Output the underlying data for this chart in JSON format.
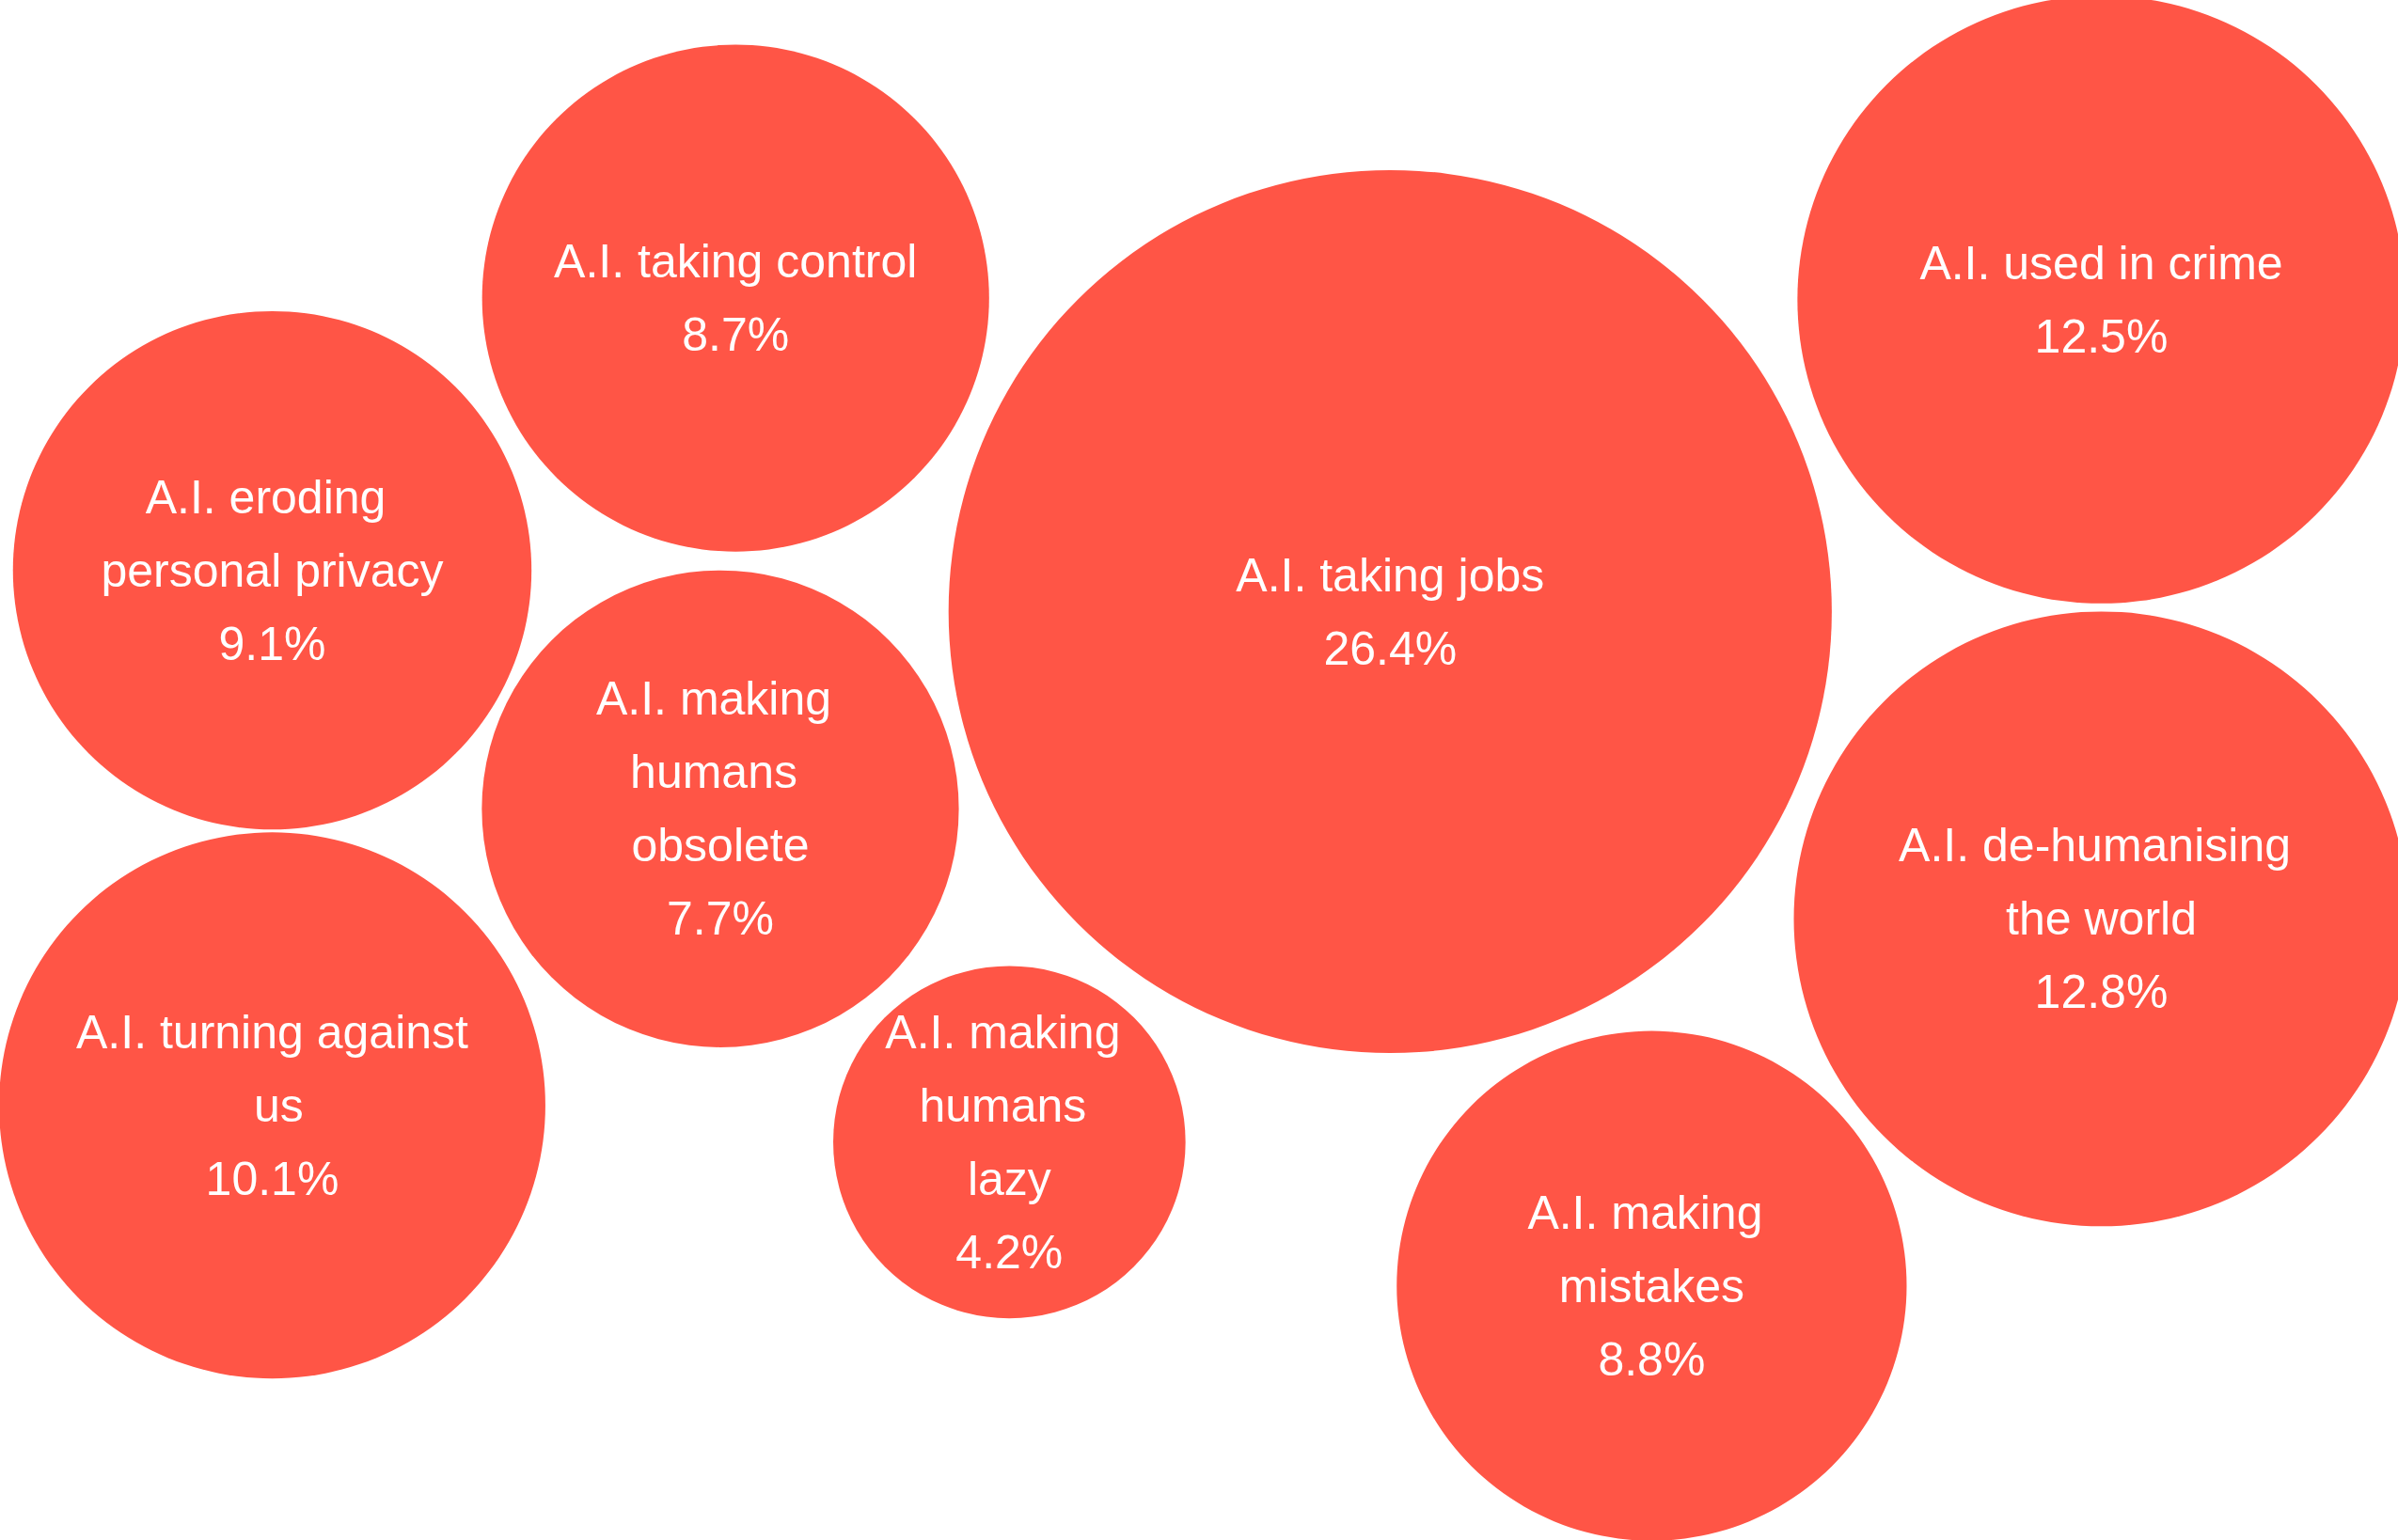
{
  "chart_data": {
    "type": "other",
    "categories": [
      "A.I. taking jobs",
      "A.I. used in crime",
      "A.I. de-humanising the world",
      "A.I. making mistakes",
      "A.I. making humans lazy",
      "A.I. turning against us",
      "A.I. making humans obsolete",
      "A.I. eroding personal privacy",
      "A.I. taking control"
    ],
    "values": [
      26.4,
      12.5,
      12.8,
      8.8,
      4.2,
      10.1,
      7.7,
      9.1,
      8.7
    ],
    "value_labels": [
      "26.4%",
      "12.5%",
      "12.8%",
      "8.8%",
      "4.2%",
      "10.1%",
      "7.7%",
      "9.1%",
      "8.7%"
    ],
    "color": "#ff5546"
  }
}
